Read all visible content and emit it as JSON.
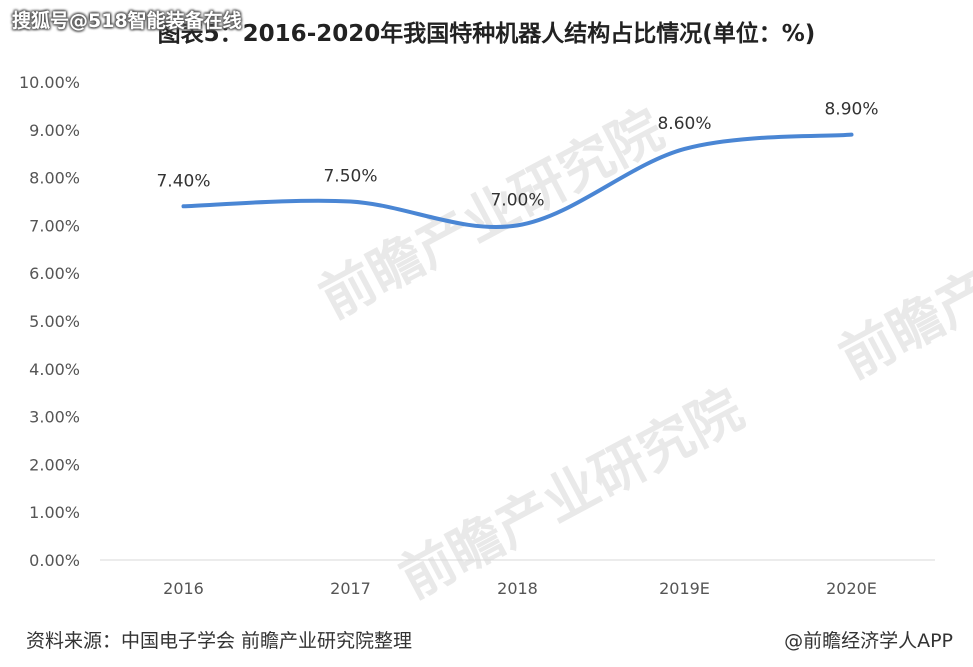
{
  "watermark_top": "搜狐号@518智能装备在线",
  "background_watermark": "前瞻产业研究院",
  "chart_data": {
    "type": "line",
    "title": "图表5：2016-2020年我国特种机器人结构占比情况(单位：%)",
    "categories": [
      "2016",
      "2017",
      "2018",
      "2019E",
      "2020E"
    ],
    "series": [
      {
        "values": [
          7.4,
          7.5,
          7.0,
          8.6,
          8.9
        ],
        "labels": [
          "7.40%",
          "7.50%",
          "7.00%",
          "8.60%",
          "8.90%"
        ],
        "color": "#4a86d4"
      }
    ],
    "yticks": [
      "0.00%",
      "1.00%",
      "2.00%",
      "3.00%",
      "4.00%",
      "5.00%",
      "6.00%",
      "7.00%",
      "8.00%",
      "9.00%",
      "10.00%"
    ],
    "ylim": [
      0,
      10
    ],
    "grid": false,
    "xlabel": "",
    "ylabel": ""
  },
  "footer": {
    "source": "资料来源：中国电子学会 前瞻产业研究院整理",
    "brand": "@前瞻经济学人APP"
  }
}
